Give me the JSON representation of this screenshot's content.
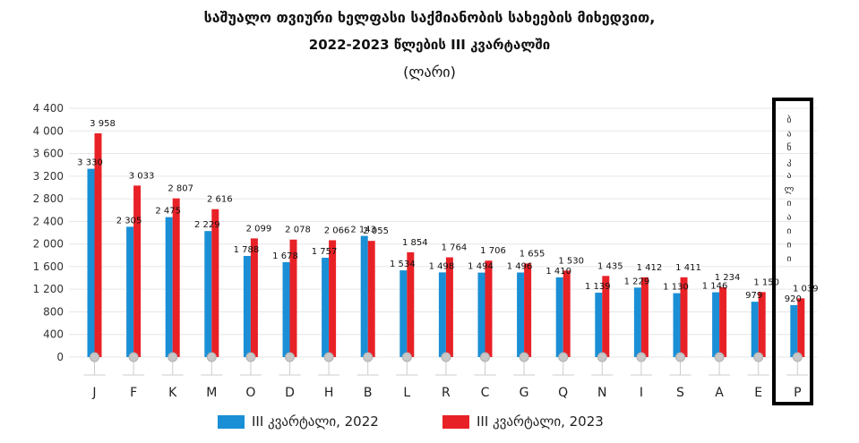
{
  "title": {
    "line1": "საშუალო თვიური ხელფასი საქმიანობის სახეების მიხედვით,",
    "line2": "2022-2023 წლების III კვარტალში",
    "unit": "(ლარი)"
  },
  "highlight_label": "ბ ა ნ კ ა ლ ი ა ი ი ი",
  "colors": {
    "series_2022": "#1a8fd6",
    "series_2023": "#e82127",
    "grid": "#e6e6e6",
    "highlight": "#000000"
  },
  "chart_data": {
    "type": "bar",
    "categories": [
      "J",
      "F",
      "K",
      "M",
      "O",
      "D",
      "H",
      "B",
      "L",
      "R",
      "C",
      "G",
      "Q",
      "N",
      "I",
      "S",
      "A",
      "E",
      "P"
    ],
    "series": [
      {
        "name": "III კვარტალი, 2022",
        "values": [
          3330,
          2305,
          2475,
          2229,
          1788,
          1678,
          1757,
          2143,
          1534,
          1498,
          1494,
          1496,
          1410,
          1139,
          1229,
          1130,
          1146,
          979,
          920
        ],
        "labels": [
          "3 330",
          "2 305",
          "2 475",
          "2 229",
          "1 788",
          "1 678",
          "1 757",
          "2 143",
          "1 534",
          "1 498",
          "1 494",
          "1 496",
          "1 410",
          "1 139",
          "1 229",
          "1 130",
          "1 146",
          "979",
          "920"
        ]
      },
      {
        "name": "III კვარტალი, 2023",
        "values": [
          3958,
          3033,
          2807,
          2616,
          2099,
          2078,
          2066,
          2055,
          1854,
          1764,
          1706,
          1655,
          1530,
          1435,
          1412,
          1411,
          1234,
          1150,
          1039
        ],
        "labels": [
          "3 958",
          "3 033",
          "2 807",
          "2 616",
          "2 099",
          "2 078",
          "2 066",
          "2 055",
          "1 854",
          "1 764",
          "1 706",
          "1 655",
          "1 530",
          "1 435",
          "1 412",
          "1 411",
          "1 234",
          "1 150",
          "1 039"
        ]
      }
    ],
    "yticks": [
      "0",
      "400",
      "800",
      "1 200",
      "1 600",
      "2 000",
      "2 400",
      "2 800",
      "3 200",
      "3 600",
      "4 000",
      "4 400"
    ],
    "ylim": [
      0,
      4400
    ],
    "grid": true,
    "legend": "bottom-center"
  }
}
